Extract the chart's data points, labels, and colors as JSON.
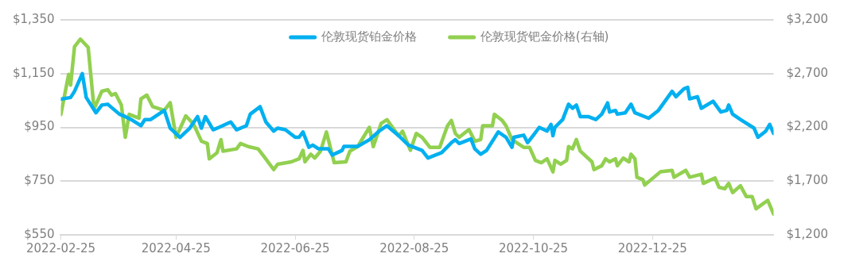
{
  "chart_data": {
    "type": "line",
    "legend": "top",
    "grid": "y",
    "marker": "none",
    "line_style": "solid",
    "xlim": [
      "2022-02-25",
      "2023-02-25"
    ],
    "xticks": [
      "2022-02-25",
      "2022-04-25",
      "2022-06-25",
      "2022-08-25",
      "2022-10-25",
      "2022-12-25"
    ],
    "ylim": [
      550,
      1350
    ],
    "yticks": [
      {
        "value": 550,
        "label": "$550"
      },
      {
        "value": 750,
        "label": "$750"
      },
      {
        "value": 950,
        "label": "$950"
      },
      {
        "value": 1150,
        "label": "$1,150"
      },
      {
        "value": 1350,
        "label": "$1,350"
      }
    ],
    "y2lim": [
      1200,
      3200
    ],
    "y2ticks": [
      {
        "value": 1200,
        "label": "$1,200"
      },
      {
        "value": 1700,
        "label": "$1,700"
      },
      {
        "value": 2200,
        "label": "$2,200"
      },
      {
        "value": 2700,
        "label": "$2,700"
      },
      {
        "value": 3200,
        "label": "$3,200"
      }
    ],
    "series": [
      {
        "name": "伦敦现货铂金价格",
        "color": "#00b0f0",
        "x": [
          "2022-02-25",
          "2022-03-02",
          "2022-03-04",
          "2022-03-08",
          "2022-03-10",
          "2022-03-15",
          "2022-03-18",
          "2022-03-21",
          "2022-03-27",
          "2022-03-30",
          "2022-04-02",
          "2022-04-07",
          "2022-04-09",
          "2022-04-12",
          "2022-04-19",
          "2022-04-22",
          "2022-04-27",
          "2022-05-02",
          "2022-05-06",
          "2022-05-08",
          "2022-05-10",
          "2022-05-14",
          "2022-05-17",
          "2022-05-23",
          "2022-05-26",
          "2022-05-29",
          "2022-05-31",
          "2022-06-02",
          "2022-06-07",
          "2022-06-10",
          "2022-06-14",
          "2022-06-16",
          "2022-06-20",
          "2022-06-25",
          "2022-06-27",
          "2022-06-29",
          "2022-07-02",
          "2022-07-04",
          "2022-07-07",
          "2022-07-12",
          "2022-07-14",
          "2022-07-19",
          "2022-07-20",
          "2022-07-27",
          "2022-08-02",
          "2022-08-07",
          "2022-08-11",
          "2022-08-17",
          "2022-08-22",
          "2022-08-29",
          "2022-09-01",
          "2022-09-08",
          "2022-09-13",
          "2022-09-15",
          "2022-09-17",
          "2022-09-23",
          "2022-09-25",
          "2022-09-28",
          "2022-10-01",
          "2022-10-07",
          "2022-10-11",
          "2022-10-14",
          "2022-10-15",
          "2022-10-20",
          "2022-10-22",
          "2022-10-25",
          "2022-10-28",
          "2022-11-01",
          "2022-11-03",
          "2022-11-04",
          "2022-11-05",
          "2022-11-09",
          "2022-11-12",
          "2022-11-14",
          "2022-11-16",
          "2022-11-18",
          "2022-11-22",
          "2022-11-26",
          "2022-11-29",
          "2022-12-02",
          "2022-12-03",
          "2022-12-06",
          "2022-12-07",
          "2022-12-11",
          "2022-12-14",
          "2022-12-16",
          "2022-12-23",
          "2022-12-28",
          "2023-01-04",
          "2023-01-06",
          "2023-01-10",
          "2023-01-12",
          "2023-01-13",
          "2023-01-17",
          "2023-01-19",
          "2023-01-25",
          "2023-01-29",
          "2023-02-01",
          "2023-02-02",
          "2023-02-04",
          "2023-02-08",
          "2023-02-15",
          "2023-02-17",
          "2023-02-21",
          "2023-02-23",
          "2023-02-25"
        ],
        "values": [
          1055,
          1061,
          1084,
          1150,
          1061,
          1004,
          1033,
          1036,
          999,
          990,
          979,
          956,
          979,
          979,
          1013,
          947,
          913,
          947,
          990,
          947,
          990,
          941,
          950,
          970,
          941,
          950,
          956,
          999,
          1027,
          970,
          936,
          947,
          941,
          913,
          913,
          933,
          876,
          884,
          870,
          870,
          847,
          864,
          879,
          879,
          904,
          936,
          956,
          919,
          884,
          864,
          836,
          856,
          893,
          904,
          890,
          907,
          870,
          850,
          864,
          933,
          913,
          876,
          913,
          921,
          893,
          921,
          950,
          936,
          961,
          919,
          950,
          979,
          1036,
          1021,
          1033,
          990,
          990,
          979,
          999,
          1041,
          1007,
          1013,
          999,
          1004,
          1036,
          1004,
          984,
          1013,
          1084,
          1064,
          1093,
          1099,
          1056,
          1064,
          1021,
          1047,
          1007,
          1013,
          1033,
          999,
          979,
          947,
          913,
          936,
          961,
          927
        ]
      },
      {
        "name": "伦敦现货钯金价格(右轴)",
        "color": "#92d050",
        "axis": "y2",
        "x": [
          "2022-02-25",
          "2022-03-01",
          "2022-03-02",
          "2022-03-04",
          "2022-03-07",
          "2022-03-11",
          "2022-03-14",
          "2022-03-18",
          "2022-03-21",
          "2022-03-23",
          "2022-03-25",
          "2022-03-28",
          "2022-03-30",
          "2022-04-01",
          "2022-04-06",
          "2022-04-07",
          "2022-04-10",
          "2022-04-13",
          "2022-04-19",
          "2022-04-22",
          "2022-04-25",
          "2022-04-30",
          "2022-05-04",
          "2022-05-08",
          "2022-05-11",
          "2022-05-12",
          "2022-05-16",
          "2022-05-18",
          "2022-05-19",
          "2022-05-26",
          "2022-05-28",
          "2022-06-01",
          "2022-06-06",
          "2022-06-09",
          "2022-06-14",
          "2022-06-16",
          "2022-06-23",
          "2022-06-27",
          "2022-06-29",
          "2022-06-30",
          "2022-07-03",
          "2022-07-05",
          "2022-07-08",
          "2022-07-11",
          "2022-07-15",
          "2022-07-21",
          "2022-07-23",
          "2022-07-27",
          "2022-08-02",
          "2022-08-04",
          "2022-08-08",
          "2022-08-11",
          "2022-08-17",
          "2022-08-19",
          "2022-08-23",
          "2022-08-26",
          "2022-08-29",
          "2022-09-02",
          "2022-09-07",
          "2022-09-11",
          "2022-09-13",
          "2022-09-15",
          "2022-09-17",
          "2022-09-22",
          "2022-09-25",
          "2022-09-28",
          "2022-09-29",
          "2022-10-04",
          "2022-10-05",
          "2022-10-09",
          "2022-10-11",
          "2022-10-14",
          "2022-10-20",
          "2022-10-23",
          "2022-10-26",
          "2022-10-29",
          "2022-11-01",
          "2022-11-04",
          "2022-11-05",
          "2022-11-08",
          "2022-11-11",
          "2022-11-12",
          "2022-11-14",
          "2022-11-16",
          "2022-11-18",
          "2022-11-24",
          "2022-11-25",
          "2022-11-29",
          "2022-12-01",
          "2022-12-03",
          "2022-12-06",
          "2022-12-07",
          "2022-12-10",
          "2022-12-13",
          "2022-12-14",
          "2022-12-16",
          "2022-12-17",
          "2022-12-20",
          "2022-12-21",
          "2022-12-29",
          "2023-01-04",
          "2023-01-05",
          "2023-01-11",
          "2023-01-13",
          "2023-01-19",
          "2023-01-20",
          "2023-01-26",
          "2023-01-28",
          "2023-01-31",
          "2023-02-02",
          "2023-02-04",
          "2023-02-08",
          "2023-02-11",
          "2023-02-14",
          "2023-02-16",
          "2023-02-22",
          "2023-02-25"
        ],
        "values": [
          2320,
          2693,
          2593,
          2950,
          3021,
          2943,
          2371,
          2536,
          2550,
          2500,
          2514,
          2407,
          2107,
          2321,
          2286,
          2464,
          2500,
          2393,
          2357,
          2429,
          2107,
          2307,
          2229,
          2071,
          2050,
          1907,
          1964,
          2086,
          1979,
          2000,
          2050,
          2021,
          2000,
          1929,
          1807,
          1857,
          1879,
          1907,
          1986,
          1879,
          1950,
          1914,
          1979,
          2157,
          1871,
          1879,
          1979,
          2021,
          2200,
          2021,
          2236,
          2271,
          2121,
          2164,
          1986,
          2143,
          2107,
          2014,
          2014,
          2214,
          2264,
          2143,
          2107,
          2179,
          2071,
          2086,
          2214,
          2214,
          2321,
          2264,
          2214,
          2086,
          2014,
          2014,
          1893,
          1871,
          1907,
          1786,
          1893,
          1857,
          1893,
          2021,
          2000,
          2086,
          1979,
          1879,
          1807,
          1843,
          1907,
          1879,
          1907,
          1843,
          1914,
          1879,
          1950,
          1907,
          1736,
          1714,
          1664,
          1786,
          1800,
          1736,
          1800,
          1736,
          1764,
          1679,
          1729,
          1643,
          1629,
          1679,
          1593,
          1657,
          1557,
          1557,
          1443,
          1521,
          1393
        ]
      }
    ]
  }
}
